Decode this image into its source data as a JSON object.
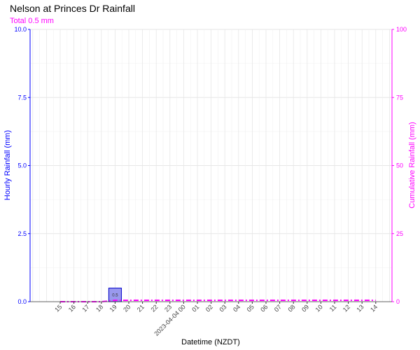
{
  "colors": {
    "primary_axis": "#0000ff",
    "secondary_axis": "#ff00ff",
    "bar_fill": "#9999ee",
    "bar_stroke": "#0000cc",
    "cumulative_line": "#ff00ff",
    "grid": "#e6e6e6"
  },
  "chart_data": {
    "type": "bar",
    "title": "Nelson at Princes Dr Rainfall",
    "subtitle": "Total 0.5 mm",
    "xlabel": "Datetime (NZDT)",
    "ylabel": "Hourly Rainfall (mm)",
    "y2label": "Cumulative Rainfall (mm)",
    "ylim": [
      0,
      10
    ],
    "y2lim": [
      0,
      100
    ],
    "yticks": [
      "0.0",
      "2.5",
      "5.0",
      "7.5",
      "10.0"
    ],
    "y2ticks": [
      "0",
      "25",
      "50",
      "75",
      "100"
    ],
    "categories": [
      "15",
      "16",
      "17",
      "18",
      "19",
      "20",
      "21",
      "22",
      "23",
      "2023-04-04 00",
      "01",
      "02",
      "03",
      "04",
      "05",
      "06",
      "07",
      "08",
      "09",
      "10",
      "11",
      "12",
      "13",
      "14"
    ],
    "series": [
      {
        "kind": "bar",
        "values": [
          0,
          0,
          0,
          0,
          0.5,
          0,
          0,
          0,
          0,
          0,
          0,
          0,
          0,
          0,
          0,
          0,
          0,
          0,
          0,
          0,
          0,
          0,
          0,
          0
        ],
        "data_labels": [
          "",
          "",
          "",
          "",
          "0.5",
          "",
          "",
          "",
          "",
          "",
          "",
          "",
          "",
          "",
          "",
          "",
          "",
          "",
          "",
          "",
          "",
          "",
          "",
          ""
        ]
      },
      {
        "kind": "line",
        "axis": "secondary",
        "values": [
          0,
          0,
          0,
          0,
          0.5,
          0.5,
          0.5,
          0.5,
          0.5,
          0.5,
          0.5,
          0.5,
          0.5,
          0.5,
          0.5,
          0.5,
          0.5,
          0.5,
          0.5,
          0.5,
          0.5,
          0.5,
          0.5,
          0.5
        ]
      }
    ],
    "grid": true,
    "legend": "none"
  }
}
